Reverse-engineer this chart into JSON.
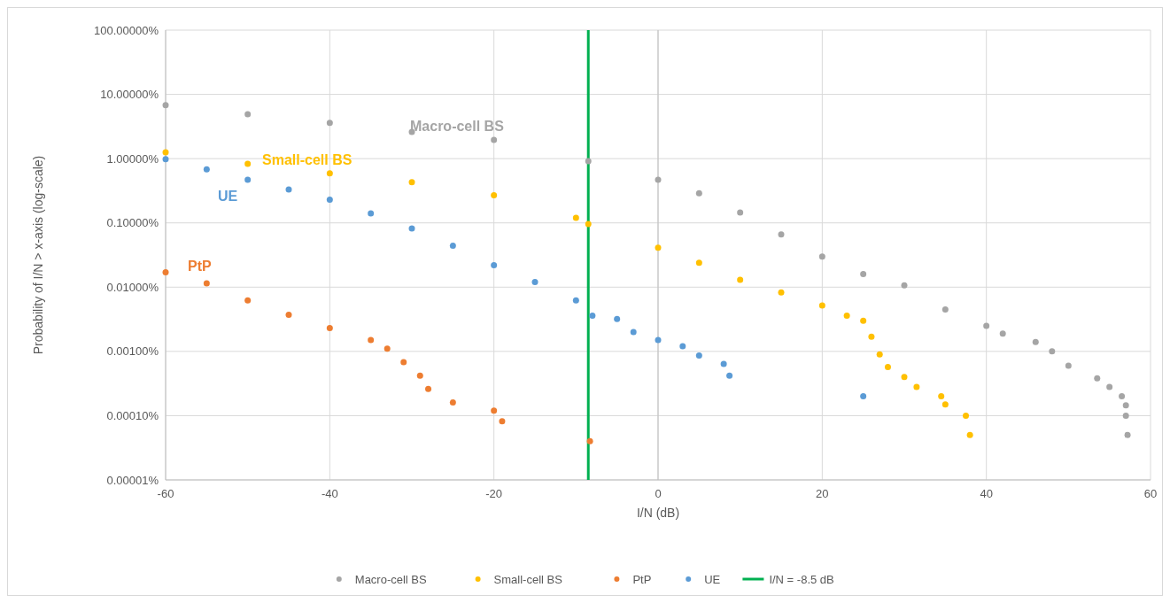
{
  "chart_data": {
    "type": "scatter",
    "xlabel": "I/N (dB)",
    "ylabel": "Probability of I/N > x-axis (log-scale)",
    "log": "y",
    "grid": true,
    "legend": "bottom",
    "marker": "circle",
    "xlim": [
      -60,
      60
    ],
    "xticks": [
      -60,
      -40,
      -20,
      0,
      20,
      40,
      60
    ],
    "ylim": [
      1e-05,
      100
    ],
    "yticks": [
      {
        "value": 1e-05,
        "label": "0.00001%"
      },
      {
        "value": 0.0001,
        "label": "0.00010%"
      },
      {
        "value": 0.001,
        "label": "0.00100%"
      },
      {
        "value": 0.01,
        "label": "0.01000%"
      },
      {
        "value": 0.1,
        "label": "0.10000%"
      },
      {
        "value": 1,
        "label": "1.00000%"
      },
      {
        "value": 10,
        "label": "10.00000%"
      },
      {
        "value": 100,
        "label": "100.00000%"
      }
    ],
    "series": [
      {
        "name": "Macro-cell BS",
        "color": "#a5a5a5",
        "x": [
          -60,
          -50,
          -40,
          -30,
          -20,
          -8.5,
          0,
          5,
          10,
          15,
          20,
          25,
          30,
          35,
          40,
          42,
          46,
          48,
          50,
          53.5,
          55,
          56.5,
          57,
          57,
          57.2
        ],
        "values": [
          6.8,
          4.9,
          3.6,
          2.6,
          1.96,
          0.91,
          0.47,
          0.29,
          0.145,
          0.066,
          0.03,
          0.016,
          0.0107,
          0.0045,
          0.0025,
          0.0019,
          0.0014,
          0.001,
          0.0006,
          0.00038,
          0.00028,
          0.0002,
          0.000145,
          0.0001,
          5e-05
        ]
      },
      {
        "name": "Small-cell BS",
        "color": "#ffc000",
        "x": [
          -60,
          -50,
          -40,
          -30,
          -20,
          -10,
          -8.5,
          0,
          5,
          10,
          15,
          20,
          23,
          25,
          26,
          27,
          28,
          30,
          31.5,
          34.5,
          35,
          37.5,
          38
        ],
        "values": [
          1.25,
          0.83,
          0.59,
          0.43,
          0.27,
          0.12,
          0.096,
          0.041,
          0.024,
          0.013,
          0.0083,
          0.0052,
          0.0036,
          0.003,
          0.0017,
          0.0009,
          0.00057,
          0.0004,
          0.00028,
          0.0002,
          0.00015,
          0.0001,
          5e-05
        ]
      },
      {
        "name": "PtP",
        "color": "#ed7d31",
        "x": [
          -60,
          -55,
          -50,
          -45,
          -40,
          -35,
          -33,
          -31,
          -29,
          -28,
          -25,
          -20,
          -19,
          -8.3
        ],
        "values": [
          0.017,
          0.0115,
          0.0062,
          0.0037,
          0.0023,
          0.0015,
          0.0011,
          0.00068,
          0.00042,
          0.00026,
          0.00016,
          0.00012,
          8.2e-05,
          4e-05
        ]
      },
      {
        "name": "UE",
        "color": "#5b9bd5",
        "x": [
          -60,
          -55,
          -50,
          -45,
          -40,
          -35,
          -30,
          -25,
          -20,
          -15,
          -10,
          -8,
          -5,
          -3,
          0,
          3,
          5,
          8,
          8.7,
          25
        ],
        "values": [
          0.98,
          0.68,
          0.47,
          0.33,
          0.23,
          0.14,
          0.082,
          0.044,
          0.022,
          0.012,
          0.0062,
          0.0036,
          0.0032,
          0.002,
          0.0015,
          0.0012,
          0.00086,
          0.00064,
          0.00042,
          0.0002
        ]
      }
    ],
    "ref_lines": [
      {
        "axis": "x",
        "value": -8.5,
        "label": "I/N = -8.5 dB",
        "color": "#00b050"
      }
    ],
    "annotations": [
      "Macro-cell BS",
      "Small-cell BS",
      "PtP",
      "UE"
    ]
  }
}
